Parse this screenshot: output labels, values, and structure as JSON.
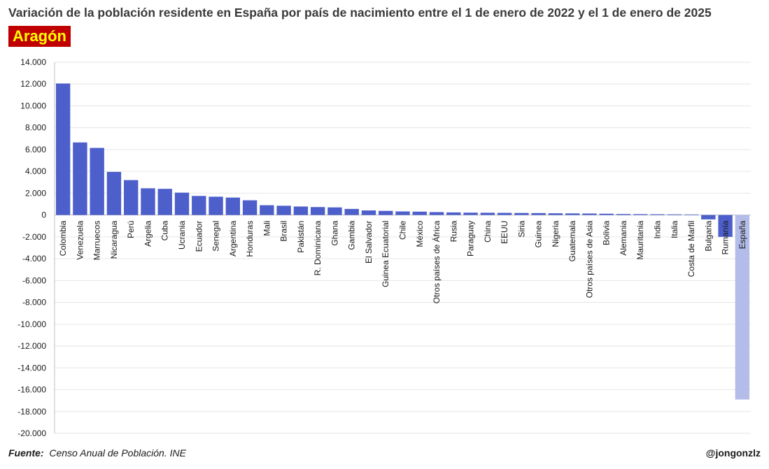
{
  "header": {
    "title": "Variación de la población residente en España por país de nacimiento entre el 1 de enero de 2022 y el 1 de enero de 2025",
    "region": "Aragón"
  },
  "footer": {
    "source_label": "Fuente:",
    "source_text": "Censo Anual de Población. INE",
    "author": "@jongonzlz"
  },
  "colors": {
    "bar": "#4d5fcb",
    "bar_highlight": "#b4bde9",
    "badge_bg": "#c00000",
    "badge_text": "#ffff00",
    "grid": "#e6e6e6"
  },
  "chart_data": {
    "type": "bar",
    "title": "Variación de la población residente en España por país de nacimiento entre el 1 de enero de 2022 y el 1 de enero de 2025",
    "subtitle": "Aragón",
    "xlabel": "",
    "ylabel": "",
    "ylim": [
      -20000,
      14000
    ],
    "yticks": [
      14000,
      12000,
      10000,
      8000,
      6000,
      4000,
      2000,
      0,
      -2000,
      -4000,
      -6000,
      -8000,
      -10000,
      -12000,
      -14000,
      -16000,
      -18000,
      -20000
    ],
    "ytick_labels": [
      "14.000",
      "12.000",
      "10.000",
      "8.000",
      "6.000",
      "4.000",
      "2.000",
      "0",
      "-2.000",
      "-4.000",
      "-6.000",
      "-8.000",
      "-10.000",
      "-12.000",
      "-14.000",
      "-16.000",
      "-18.000",
      "-20.000"
    ],
    "grid": true,
    "categories": [
      "Colombia",
      "Venezuela",
      "Marruecos",
      "Nicaragua",
      "Perú",
      "Argelia",
      "Cuba",
      "Ucrania",
      "Ecuador",
      "Senegal",
      "Argentina",
      "Honduras",
      "Mali",
      "Brasil",
      "Pakistán",
      "R. Dominicana",
      "Ghana",
      "Gambia",
      "El Salvador",
      "Guinea Ecuatorial",
      "Chile",
      "México",
      "Otros países de África",
      "Rusia",
      "Paraguay",
      "China",
      "EEUU",
      "Siria",
      "Guinea",
      "Nigeria",
      "Guatemala",
      "Otros países de Asia",
      "Bolivia",
      "Alemania",
      "Mauritania",
      "India",
      "Italia",
      "Costa de Marfil",
      "Bulgaria",
      "Rumanía",
      "España"
    ],
    "values": [
      12050,
      6650,
      6150,
      3950,
      3200,
      2450,
      2400,
      2050,
      1750,
      1680,
      1600,
      1350,
      900,
      850,
      780,
      730,
      700,
      560,
      420,
      380,
      330,
      310,
      270,
      240,
      220,
      210,
      200,
      190,
      180,
      160,
      150,
      140,
      120,
      90,
      80,
      70,
      60,
      50,
      -400,
      -2000,
      -16900
    ],
    "highlight": [
      "España"
    ]
  }
}
